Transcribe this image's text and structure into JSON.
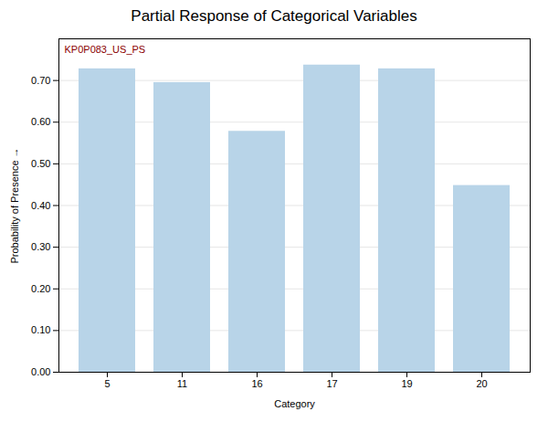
{
  "chart_data": {
    "type": "bar",
    "title": "Partial Response of Categorical Variables",
    "xlabel": "Category",
    "ylabel": "Probability of Presence",
    "categories": [
      "5",
      "11",
      "16",
      "17",
      "19",
      "20"
    ],
    "values": [
      0.728,
      0.695,
      0.578,
      0.737,
      0.728,
      0.448
    ],
    "color": "#b8d4e8",
    "ylim": [
      0,
      0.8
    ],
    "yticks": [
      {
        "value": 0,
        "label": "0.00"
      },
      {
        "value": 0.1,
        "label": "0.10"
      },
      {
        "value": 0.2,
        "label": "0.20"
      },
      {
        "value": 0.3,
        "label": "0.30"
      },
      {
        "value": 0.4,
        "label": "0.40"
      },
      {
        "value": 0.5,
        "label": "0.50"
      },
      {
        "value": 0.6,
        "label": "0.60"
      },
      {
        "value": 0.7,
        "label": "0.70"
      }
    ],
    "annotations": [
      {
        "text": "KP0P083_US_PS",
        "color": "#8b0000"
      }
    ],
    "grid": true
  }
}
